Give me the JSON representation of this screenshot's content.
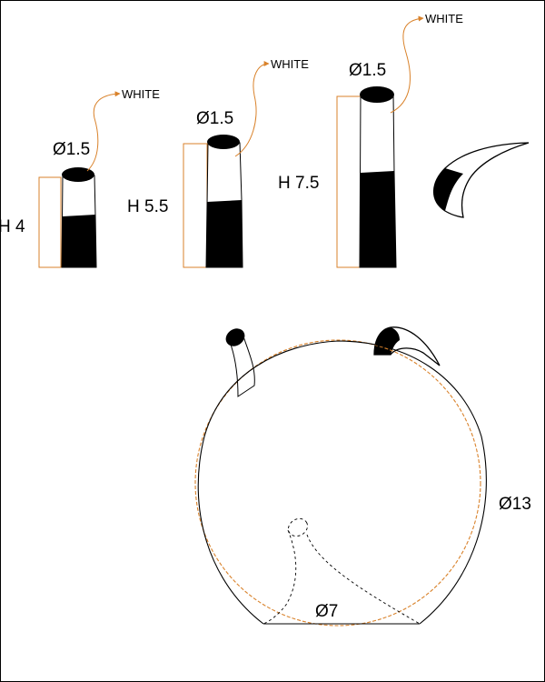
{
  "colors": {
    "line": "#000000",
    "accent": "#d9822b",
    "background": "#ffffff"
  },
  "labels": {
    "diam_small": "Ø1.5",
    "diam_medium": "Ø1.5",
    "diam_large": "Ø1.5",
    "h_small": "H 4",
    "h_medium": "H 5.5",
    "h_large": "H 7.5",
    "white_small": "WHITE",
    "white_medium": "WHITE",
    "white_large": "WHITE",
    "diam_body": "Ø13",
    "diam_base": "Ø7"
  }
}
